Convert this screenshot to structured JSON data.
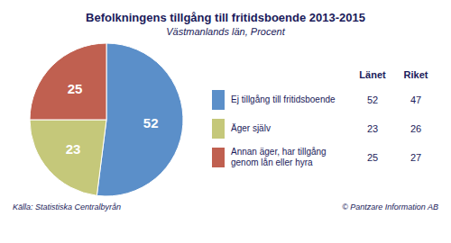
{
  "chart_data": {
    "type": "pie",
    "title": "Befolkningens tillgång till fritidsboende 2013-2015",
    "subtitle": "Västmanlands län, Procent",
    "categories": [
      "Ej tillgång till fritidsboende",
      "Äger själv",
      "Annan äger, har tillgång\ngenom lån eller hyra"
    ],
    "values": [
      52,
      23,
      25
    ],
    "colors": [
      "#5b8fc9",
      "#c5c87a",
      "#c06050"
    ],
    "data_labels": true,
    "legend": "right",
    "legend_columns": [
      "Länet",
      "Riket"
    ],
    "lanet": [
      52,
      23,
      25
    ],
    "riket": [
      47,
      26,
      27
    ],
    "source": "Källa: Statistiska Centralbyrån",
    "credit": "© Pantzare Information AB"
  }
}
